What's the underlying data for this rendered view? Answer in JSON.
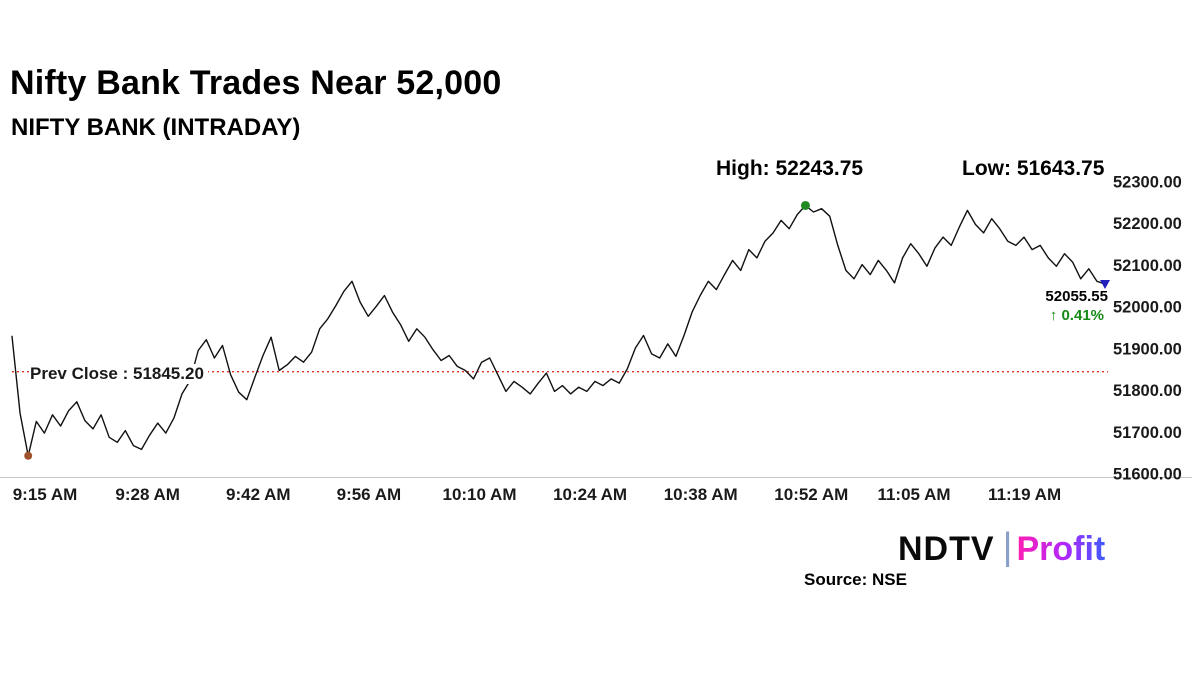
{
  "header": {
    "title": "Nifty Bank Trades Near 52,000",
    "subtitle": "NIFTY BANK (INTRADAY)"
  },
  "stats": {
    "high_label": "High: 52243.75",
    "low_label": "Low: 51643.75",
    "prev_close_label": "Prev Close : 51845.20",
    "last_price": "52055.55",
    "change_label": "↑ 0.41%"
  },
  "footer": {
    "source": "Source: NSE",
    "brand_ndtv": "NDTV",
    "brand_divider": "|",
    "brand_profit": "Profit"
  },
  "colors": {
    "line": "#111111",
    "prev_close_line": "#e63322",
    "change_green": "#158a15",
    "axis_line": "#c8c8c8",
    "tick_text": "#1a1a1a"
  },
  "chart_data": {
    "type": "line",
    "title": "NIFTY BANK (INTRADAY)",
    "ylabel": "",
    "xlabel": "",
    "ylim": [
      51600,
      52300
    ],
    "prev_close": 51845.2,
    "high": 52243.75,
    "low": 51643.75,
    "last": 52055.55,
    "x_tick_minutes": [
      0,
      13,
      27,
      41,
      55,
      69,
      83,
      97,
      110,
      124
    ],
    "x_tick_labels": [
      "9:15 AM",
      "9:28 AM",
      "9:42 AM",
      "9:56 AM",
      "10:10 AM",
      "10:24 AM",
      "10:38 AM",
      "10:52 AM",
      "11:05 AM",
      "11:19 AM"
    ],
    "y_ticks": [
      51600,
      51700,
      51800,
      51900,
      52000,
      52100,
      52200,
      52300
    ],
    "y_tick_labels": [
      "51600.00",
      "51700.00",
      "51800.00",
      "51900.00",
      "52000.00",
      "52100.00",
      "52200.00",
      "52300.00"
    ],
    "series": [
      {
        "name": "NIFTY BANK",
        "values": [
          51930,
          51745,
          51643.75,
          51726,
          51698,
          51742,
          51715,
          51752,
          51773,
          51728,
          51708,
          51742,
          51688,
          51676,
          51704,
          51668,
          51659,
          51693,
          51722,
          51698,
          51734,
          51792,
          51824,
          51896,
          51922,
          51878,
          51908,
          51838,
          51796,
          51778,
          51832,
          51884,
          51928,
          51848,
          51862,
          51882,
          51868,
          51892,
          51948,
          51972,
          52004,
          52038,
          52062,
          52012,
          51978,
          52002,
          52028,
          51988,
          51958,
          51918,
          51948,
          51928,
          51898,
          51872,
          51884,
          51858,
          51848,
          51828,
          51868,
          51878,
          51838,
          51798,
          51822,
          51808,
          51792,
          51818,
          51842,
          51798,
          51812,
          51792,
          51808,
          51798,
          51822,
          51812,
          51828,
          51818,
          51852,
          51902,
          51932,
          51888,
          51878,
          51912,
          51882,
          51932,
          51988,
          52028,
          52062,
          52042,
          52078,
          52112,
          52088,
          52138,
          52118,
          52158,
          52178,
          52208,
          52188,
          52222,
          52243.75,
          52228,
          52236,
          52218,
          52148,
          52088,
          52068,
          52102,
          52078,
          52112,
          52088,
          52058,
          52118,
          52152,
          52128,
          52098,
          52142,
          52168,
          52148,
          52192,
          52232,
          52198,
          52178,
          52212,
          52188,
          52158,
          52148,
          52168,
          52138,
          52148,
          52118,
          52098,
          52128,
          52108,
          52068,
          52092,
          52062,
          52055.55
        ]
      }
    ],
    "markers": [
      {
        "type": "circle",
        "index": 98,
        "value": 52243.75,
        "color": "#1f8a1f",
        "r": 4.5,
        "name": "high-marker"
      },
      {
        "type": "circle",
        "index": 2,
        "value": 51643.75,
        "color": "#a0522d",
        "r": 4,
        "name": "low-marker"
      },
      {
        "type": "triangle",
        "index": 135,
        "value": 52055.55,
        "color": "#2020bb",
        "name": "last-marker"
      }
    ],
    "legend": "none",
    "grid": false
  }
}
